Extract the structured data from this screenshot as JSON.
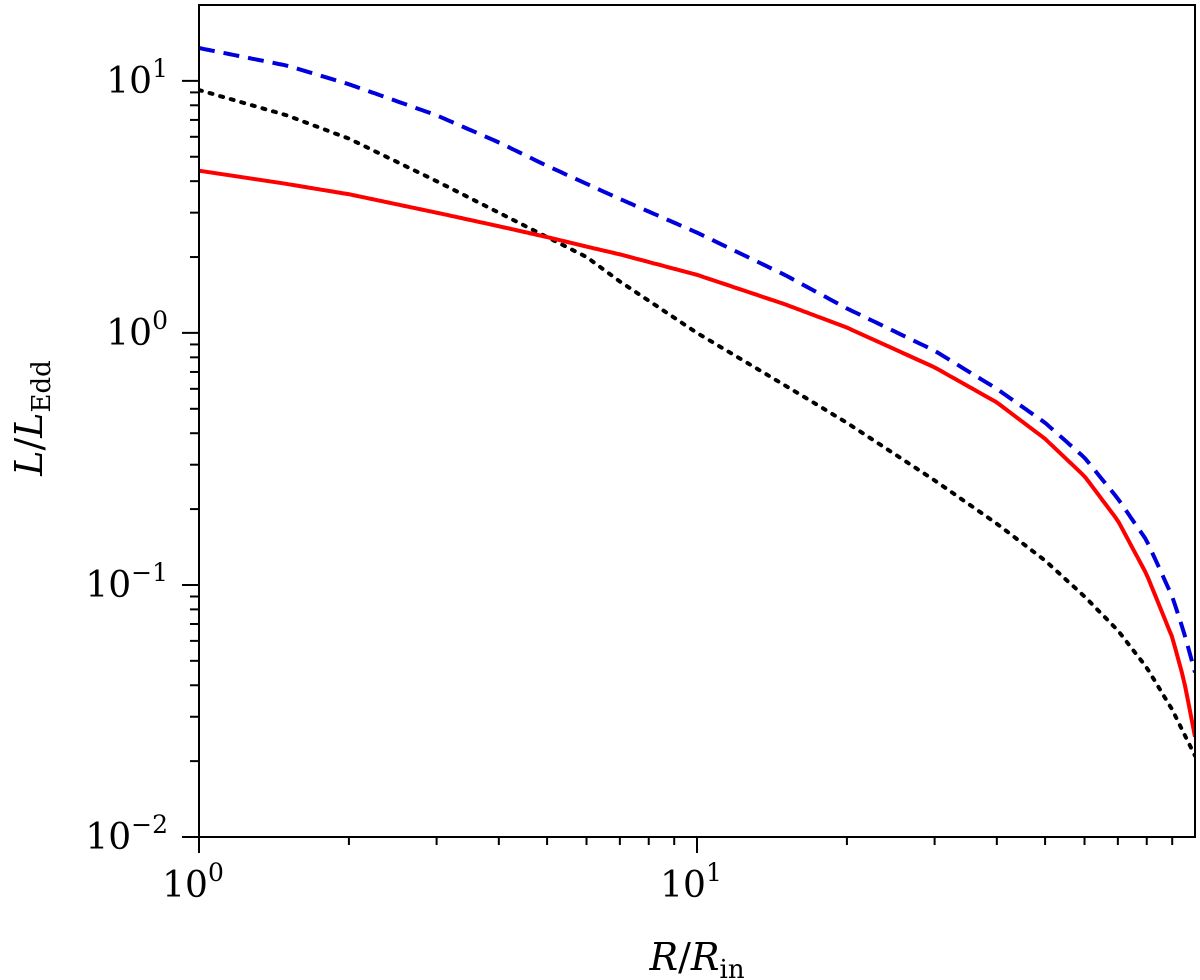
{
  "chart_data": {
    "type": "line",
    "xlabel": {
      "var": "R",
      "sep": "/",
      "den": "R",
      "den_sub": "in"
    },
    "ylabel": {
      "var": "L",
      "sep": "/",
      "den": "L",
      "den_sub": "Edd"
    },
    "x_scale": "log",
    "y_scale": "log",
    "xlim": [
      1,
      100
    ],
    "ylim": [
      0.01,
      20
    ],
    "grid": false,
    "legend": "none",
    "x_ticks": [
      {
        "value": 1,
        "base": "10",
        "exp": "0"
      },
      {
        "value": 10,
        "base": "10",
        "exp": "1"
      }
    ],
    "y_ticks": [
      {
        "value": 0.01,
        "base": "10",
        "exp": "−2"
      },
      {
        "value": 0.1,
        "base": "10",
        "exp": "−1"
      },
      {
        "value": 1,
        "base": "10",
        "exp": "0"
      },
      {
        "value": 10,
        "base": "10",
        "exp": "1"
      }
    ],
    "series": [
      {
        "color": "#0000dd",
        "style": "dashed",
        "x": [
          1,
          1.5,
          2,
          3,
          4,
          5,
          7,
          10,
          15,
          20,
          30,
          40,
          50,
          60,
          70,
          80,
          90,
          95,
          100
        ],
        "y": [
          13.5,
          11.5,
          9.7,
          7.3,
          5.7,
          4.6,
          3.4,
          2.5,
          1.7,
          1.25,
          0.85,
          0.6,
          0.44,
          0.32,
          0.22,
          0.15,
          0.09,
          0.065,
          0.045
        ]
      },
      {
        "color": "#000000",
        "style": "dotted",
        "x": [
          1,
          1.5,
          2,
          3,
          4,
          5,
          6,
          7,
          10,
          15,
          20,
          30,
          40,
          50,
          60,
          70,
          80,
          90,
          100
        ],
        "y": [
          9.2,
          7.3,
          5.9,
          4.0,
          3.0,
          2.4,
          2.0,
          1.6,
          1.0,
          0.62,
          0.44,
          0.26,
          0.175,
          0.125,
          0.09,
          0.066,
          0.047,
          0.032,
          0.021
        ]
      },
      {
        "color": "#ff0000",
        "style": "solid",
        "x": [
          1,
          1.5,
          2,
          3,
          4,
          5,
          6,
          7,
          10,
          15,
          20,
          30,
          40,
          50,
          60,
          70,
          80,
          90,
          95,
          100
        ],
        "y": [
          4.4,
          3.9,
          3.55,
          3.0,
          2.65,
          2.4,
          2.2,
          2.05,
          1.7,
          1.3,
          1.05,
          0.73,
          0.53,
          0.38,
          0.27,
          0.18,
          0.11,
          0.062,
          0.042,
          0.025
        ]
      }
    ]
  }
}
